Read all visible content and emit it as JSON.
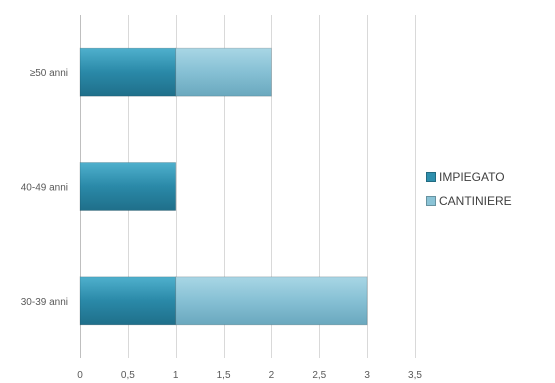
{
  "chart_data": {
    "type": "bar",
    "orientation": "horizontal",
    "stacked": true,
    "title": "",
    "xlabel": "",
    "ylabel": "",
    "categories": [
      "≥50 anni",
      "40-49 anni",
      "30-39 anni"
    ],
    "series": [
      {
        "name": "IMPIEGATO",
        "values": [
          1,
          1,
          1
        ],
        "color": "#2e8fad"
      },
      {
        "name": "CANTINIERE",
        "values": [
          1,
          0,
          2
        ],
        "color": "#8ac3d6"
      }
    ],
    "xlim": [
      0,
      3.5
    ],
    "xticks": [
      "0",
      "0,5",
      "1",
      "1,5",
      "2",
      "2,5",
      "3",
      "3,5"
    ],
    "grid": "vertical",
    "legend_position": "right"
  }
}
